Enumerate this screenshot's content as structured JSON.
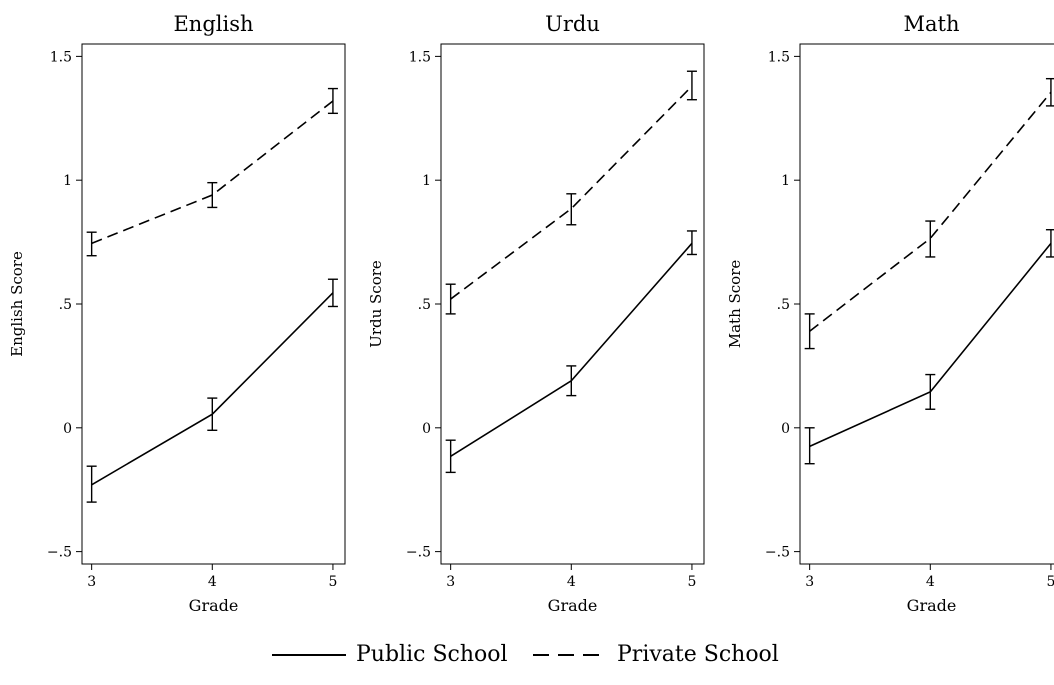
{
  "chart_data": [
    {
      "type": "line",
      "title": "English",
      "xlabel": "Grade",
      "ylabel": "English Score",
      "x": [
        3,
        4,
        5
      ],
      "xlim": [
        2.92,
        5.1
      ],
      "ylim": [
        -0.55,
        1.55
      ],
      "yticks": [
        -0.5,
        0,
        0.5,
        1,
        1.5
      ],
      "ytick_labels": [
        "−.5",
        "0",
        ".5",
        "1",
        "1.5"
      ],
      "xticks": [
        3,
        4,
        5
      ],
      "xtick_labels": [
        "3",
        "4",
        "5"
      ],
      "series": [
        {
          "name": "Public School",
          "style": "solid",
          "values": [
            -0.23,
            0.055,
            0.545
          ],
          "ci_low": [
            -0.3,
            -0.01,
            0.49
          ],
          "ci_high": [
            -0.155,
            0.12,
            0.6
          ]
        },
        {
          "name": "Private School",
          "style": "dashed",
          "values": [
            0.745,
            0.94,
            1.32
          ],
          "ci_low": [
            0.695,
            0.89,
            1.27
          ],
          "ci_high": [
            0.79,
            0.99,
            1.37
          ]
        }
      ]
    },
    {
      "type": "line",
      "title": "Urdu",
      "xlabel": "Grade",
      "ylabel": "Urdu Score",
      "x": [
        3,
        4,
        5
      ],
      "xlim": [
        2.92,
        5.1
      ],
      "ylim": [
        -0.55,
        1.55
      ],
      "yticks": [
        -0.5,
        0,
        0.5,
        1,
        1.5
      ],
      "ytick_labels": [
        "−.5",
        "0",
        ".5",
        "1",
        "1.5"
      ],
      "xticks": [
        3,
        4,
        5
      ],
      "xtick_labels": [
        "3",
        "4",
        "5"
      ],
      "series": [
        {
          "name": "Public School",
          "style": "solid",
          "values": [
            -0.115,
            0.19,
            0.745
          ],
          "ci_low": [
            -0.18,
            0.13,
            0.7
          ],
          "ci_high": [
            -0.05,
            0.25,
            0.795
          ]
        },
        {
          "name": "Private School",
          "style": "dashed",
          "values": [
            0.52,
            0.885,
            1.38
          ],
          "ci_low": [
            0.46,
            0.82,
            1.325
          ],
          "ci_high": [
            0.58,
            0.945,
            1.44
          ]
        }
      ]
    },
    {
      "type": "line",
      "title": "Math",
      "xlabel": "Grade",
      "ylabel": "Math Score",
      "x": [
        3,
        4,
        5
      ],
      "xlim": [
        2.92,
        5.1
      ],
      "ylim": [
        -0.55,
        1.55
      ],
      "yticks": [
        -0.5,
        0,
        0.5,
        1,
        1.5
      ],
      "ytick_labels": [
        "−.5",
        "0",
        ".5",
        "1",
        "1.5"
      ],
      "xticks": [
        3,
        4,
        5
      ],
      "xtick_labels": [
        "3",
        "4",
        "5"
      ],
      "series": [
        {
          "name": "Public School",
          "style": "solid",
          "values": [
            -0.075,
            0.145,
            0.745
          ],
          "ci_low": [
            -0.145,
            0.075,
            0.69
          ],
          "ci_high": [
            0.0,
            0.215,
            0.8
          ]
        },
        {
          "name": "Private School",
          "style": "dashed",
          "values": [
            0.39,
            0.765,
            1.355
          ],
          "ci_low": [
            0.32,
            0.69,
            1.3
          ],
          "ci_high": [
            0.46,
            0.835,
            1.41
          ]
        }
      ]
    }
  ],
  "legend": {
    "placement": "bottom-center",
    "items": [
      {
        "label": "Public School",
        "style": "solid"
      },
      {
        "label": "Private School",
        "style": "dashed"
      }
    ]
  },
  "colors": {
    "line": "#000000",
    "background": "#ffffff"
  }
}
